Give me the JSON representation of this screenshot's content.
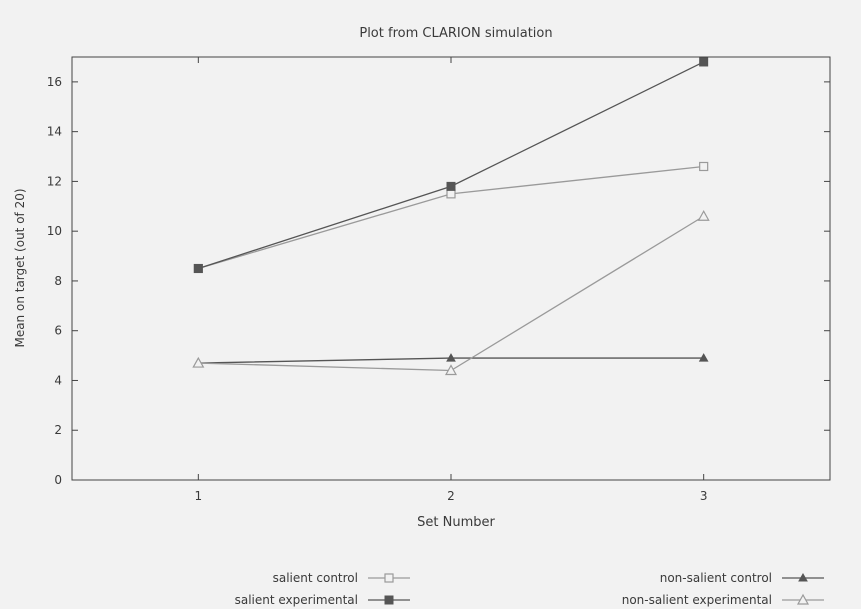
{
  "chart_data": {
    "type": "line",
    "title": "Plot from CLARION simulation",
    "xlabel": "Set Number",
    "ylabel": "Mean on target (out of 20)",
    "x": [
      1,
      2,
      3
    ],
    "xlim": [
      0.5,
      3.5
    ],
    "ylim": [
      0,
      17
    ],
    "xticks": [
      "1",
      "2",
      "3"
    ],
    "yticks": [
      "0",
      "2",
      "4",
      "6",
      "8",
      "10",
      "12",
      "14",
      "16"
    ],
    "grid": false,
    "legend_position": "bottom",
    "series": [
      {
        "name": "salient control",
        "values": [
          8.5,
          11.5,
          12.6
        ],
        "marker": "open-square",
        "color": "#9a9a9a"
      },
      {
        "name": "salient experimental",
        "values": [
          8.5,
          11.8,
          16.8
        ],
        "marker": "filled-square",
        "color": "#555555"
      },
      {
        "name": "non-salient control",
        "values": [
          4.7,
          4.9,
          4.9
        ],
        "marker": "filled-triangle",
        "color": "#555555"
      },
      {
        "name": "non-salient experimental",
        "values": [
          4.7,
          4.4,
          10.6
        ],
        "marker": "open-triangle",
        "color": "#9a9a9a"
      }
    ]
  }
}
